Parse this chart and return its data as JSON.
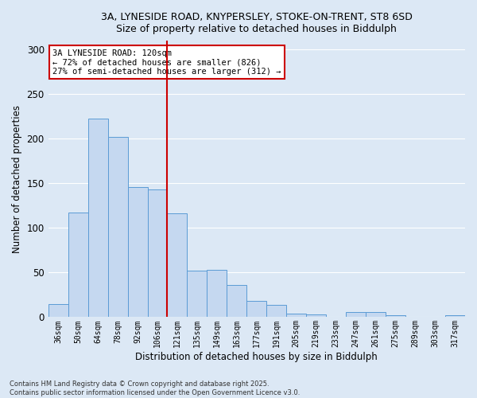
{
  "title_line1": "3A, LYNESIDE ROAD, KNYPERSLEY, STOKE-ON-TRENT, ST8 6SD",
  "title_line2": "Size of property relative to detached houses in Biddulph",
  "xlabel": "Distribution of detached houses by size in Biddulph",
  "ylabel": "Number of detached properties",
  "categories": [
    "36sqm",
    "50sqm",
    "64sqm",
    "78sqm",
    "92sqm",
    "106sqm",
    "121sqm",
    "135sqm",
    "149sqm",
    "163sqm",
    "177sqm",
    "191sqm",
    "205sqm",
    "219sqm",
    "233sqm",
    "247sqm",
    "261sqm",
    "275sqm",
    "289sqm",
    "303sqm",
    "317sqm"
  ],
  "values": [
    15,
    117,
    223,
    202,
    146,
    143,
    116,
    52,
    53,
    36,
    18,
    14,
    4,
    3,
    0,
    6,
    6,
    2,
    0,
    0,
    2
  ],
  "bar_color": "#c5d8f0",
  "bar_edge_color": "#5b9bd5",
  "vline_color": "#cc0000",
  "annotation_text": "3A LYNESIDE ROAD: 120sqm\n← 72% of detached houses are smaller (826)\n27% of semi-detached houses are larger (312) →",
  "annotation_box_color": "#ffffff",
  "annotation_box_edge": "#cc0000",
  "bg_color": "#dce8f5",
  "plot_bg_color": "#dce8f5",
  "footer_text": "Contains HM Land Registry data © Crown copyright and database right 2025.\nContains public sector information licensed under the Open Government Licence v3.0.",
  "ylim": [
    0,
    310
  ],
  "yticks": [
    0,
    50,
    100,
    150,
    200,
    250,
    300
  ]
}
